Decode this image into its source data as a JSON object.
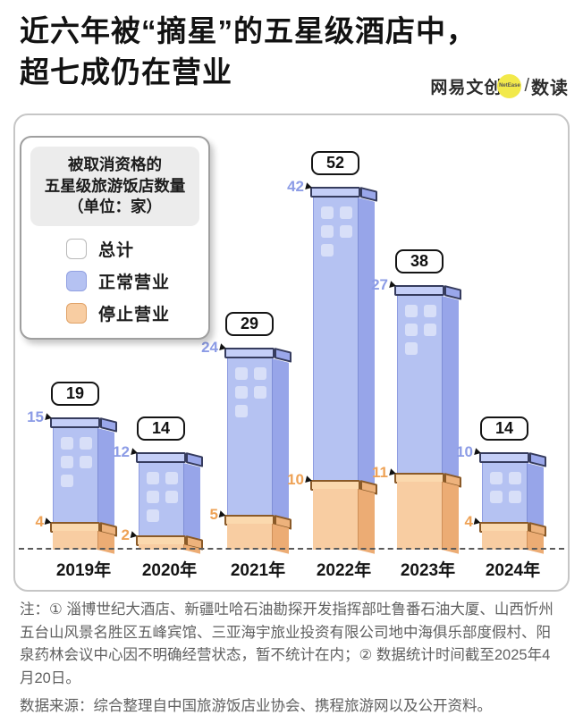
{
  "title": {
    "line1": "近六年被“摘星”的五星级酒店中，",
    "line2": "超七成仍在营业"
  },
  "logo": {
    "brand": "网易文创",
    "badge": "NetEase",
    "slash": "/",
    "product": "数读"
  },
  "legend": {
    "header_line1": "被取消资格的",
    "header_line2": "五星级旅游饭店数量",
    "header_line3": "（单位：家）",
    "items": [
      {
        "label": "总计",
        "key": "total"
      },
      {
        "label": "正常营业",
        "key": "open"
      },
      {
        "label": "停止营业",
        "key": "closed"
      }
    ]
  },
  "chart_data": {
    "type": "bar",
    "title": "被取消资格的五星级旅游饭店数量（单位：家）",
    "categories": [
      "2019年",
      "2020年",
      "2021年",
      "2022年",
      "2023年",
      "2024年"
    ],
    "series": [
      {
        "name": "总计",
        "values": [
          19,
          14,
          29,
          52,
          38,
          14
        ]
      },
      {
        "name": "正常营业",
        "values": [
          15,
          12,
          24,
          42,
          27,
          10
        ]
      },
      {
        "name": "停止营业",
        "values": [
          4,
          2,
          5,
          10,
          11,
          4
        ]
      }
    ],
    "ylim": [
      0,
      52
    ],
    "grid": false,
    "legend_position": "top-left",
    "baseline_style": "dashed"
  },
  "colors": {
    "blue_face": "#b5c2f2",
    "blue_side": "#97a5e9",
    "blue_cap": "#c4cef7",
    "blue_label": "#8c9ce6",
    "orange_face": "#f8cda2",
    "orange_side": "#ecac74",
    "orange_cap": "#fbd9ae",
    "orange_label": "#eea256",
    "logo_yellow": "#f2e94a"
  },
  "notes": {
    "note": "注：① 淄博世纪大酒店、新疆吐哈石油勘探开发指挥部吐鲁番石油大厦、山西忻州五台山风景名胜区五峰宾馆、三亚海宇旅业投资有限公司地中海俱乐部度假村、阳泉药林会议中心因不明确经营状态，暂不统计在内；② 数据统计时间截至2025年4月20日。",
    "source": "数据来源：综合整理自中国旅游饭店业协会、携程旅游网以及公开资料。"
  }
}
